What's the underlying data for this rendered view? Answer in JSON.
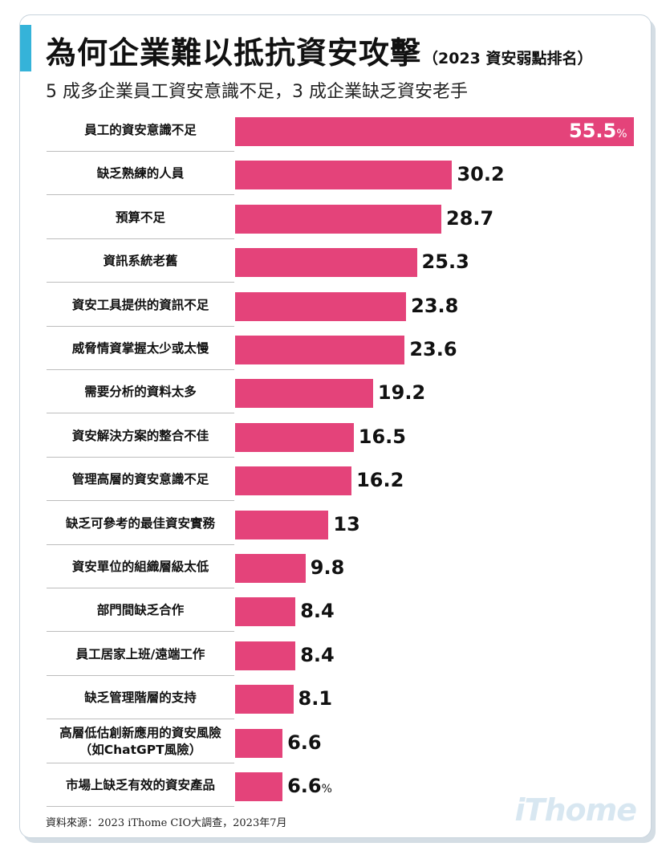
{
  "header": {
    "title": "為何企業難以抵抗資安攻擊",
    "title_note": "（2023 資安弱點排名）",
    "subtitle": "5 成多企業員工資安意識不足，3 成企業缺乏資安老手"
  },
  "chart_data": {
    "type": "bar",
    "orientation": "horizontal",
    "unit": "%",
    "xlim": [
      0,
      55.5
    ],
    "categories": [
      "員工的資安意識不足",
      "缺乏熟練的人員",
      "預算不足",
      "資訊系統老舊",
      "資安工具提供的資訊不足",
      "威脅情資掌握太少或太慢",
      "需要分析的資料太多",
      "資安解決方案的整合不佳",
      "管理高層的資安意識不足",
      "缺乏可參考的最佳資安實務",
      "資安單位的組織層級太低",
      "部門間缺乏合作",
      "員工居家上班/遠端工作",
      "缺乏管理階層的支持",
      "高層低估創新應用的資安風險\n（如ChatGPT風險）",
      "市場上缺乏有效的資安產品"
    ],
    "values": [
      55.5,
      30.2,
      28.7,
      25.3,
      23.8,
      23.6,
      19.2,
      16.5,
      16.2,
      13,
      9.8,
      8.4,
      8.4,
      8.1,
      6.6,
      6.6
    ],
    "value_labels": [
      "55.5",
      "30.2",
      "28.7",
      "25.3",
      "23.8",
      "23.6",
      "19.2",
      "16.5",
      "16.2",
      "13",
      "9.8",
      "8.4",
      "8.4",
      "8.1",
      "6.6",
      "6.6"
    ],
    "percent_marks": [
      "%",
      "",
      "",
      "",
      "",
      "",
      "",
      "",
      "",
      "",
      "",
      "",
      "",
      "",
      "",
      "%"
    ],
    "bar_color": "#e4437a"
  },
  "footer": {
    "source": "資料來源：2023 iThome CIO大調查，2023年7月",
    "logo": "iThome"
  },
  "colors": {
    "accent": "#35b3d9",
    "bar": "#e4437a"
  }
}
